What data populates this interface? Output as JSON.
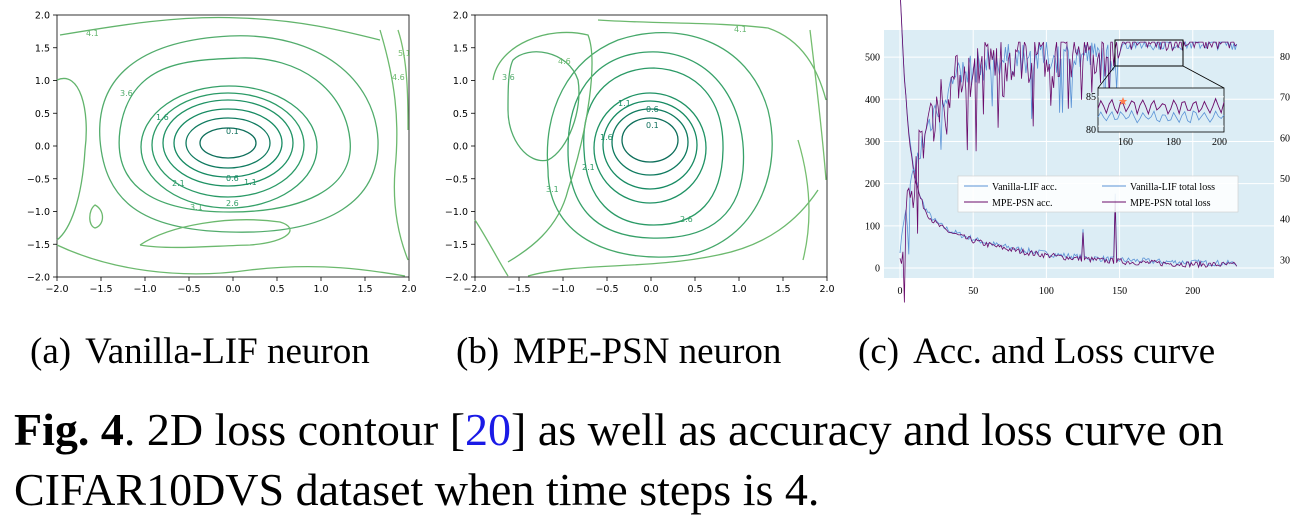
{
  "panels": [
    {
      "caption_tag": "(a)",
      "caption": "Vanilla-LIF neuron",
      "chart_data": {
        "type": "contour",
        "x_ticks": [
          "−2.0",
          "−1.5",
          "−1.0",
          "−0.5",
          "0.0",
          "0.5",
          "1.0",
          "1.5",
          "2.0"
        ],
        "y_ticks": [
          "2.0",
          "1.5",
          "1.0",
          "0.5",
          "0.0",
          "−0.5",
          "−1.0",
          "−1.5",
          "−2.0"
        ],
        "xlim": [
          -2,
          2
        ],
        "ylim": [
          -2,
          2
        ],
        "contour_labels": [
          "0.1",
          "0.6",
          "1.1",
          "1.6",
          "2.1",
          "2.6",
          "3.1",
          "3.6",
          "4.1",
          "4.6",
          "5.1"
        ],
        "min_location": [
          0.0,
          0.0
        ]
      }
    },
    {
      "caption_tag": "(b)",
      "caption": "MPE-PSN neuron",
      "chart_data": {
        "type": "contour",
        "x_ticks": [
          "−2.0",
          "−1.5",
          "−1.0",
          "−0.5",
          "0.0",
          "0.5",
          "1.0",
          "1.5",
          "2.0"
        ],
        "y_ticks": [
          "2.0",
          "1.5",
          "1.0",
          "0.5",
          "0.0",
          "−0.5",
          "−1.0",
          "−1.5",
          "−2.0"
        ],
        "xlim": [
          -2,
          2
        ],
        "ylim": [
          -2,
          2
        ],
        "contour_labels": [
          "0.1",
          "0.6",
          "1.1",
          "1.6",
          "2.1",
          "2.6",
          "3.1",
          "3.6",
          "4.1",
          "4.6"
        ],
        "min_location": [
          0.0,
          0.2
        ]
      }
    },
    {
      "caption_tag": "(c)",
      "caption": "Acc. and Loss curve",
      "chart_data": {
        "type": "line",
        "x_ticks": [
          "0",
          "50",
          "100",
          "150",
          "200"
        ],
        "y_left_ticks": [
          "500",
          "400",
          "300",
          "200",
          "100",
          "0"
        ],
        "y_right_ticks": [
          "80",
          "70",
          "60",
          "50",
          "40",
          "30"
        ],
        "xlim": [
          0,
          235
        ],
        "ylim_left": [
          0,
          550
        ],
        "ylim_right": [
          28,
          85
        ],
        "legend": [
          "Vanilla-LIF acc.",
          "MPE-PSN acc.",
          "Vanilla-LIF total loss",
          "MPE-PSN total loss"
        ],
        "inset": {
          "x_ticks": [
            "160",
            "180",
            "200"
          ],
          "y_ticks": [
            "85",
            "80"
          ],
          "xlim": [
            155,
            200
          ],
          "ylim": [
            79,
            86.5
          ]
        },
        "colors": {
          "vanilla": "#5b93d6",
          "mpe": "#6a0a6a",
          "background": "#dcedf5"
        }
      }
    }
  ],
  "figure_caption": {
    "label": "Fig. 4",
    "text_before_ref": ". 2D loss contour [",
    "ref": "20",
    "text_after_ref": "] as well as accuracy and loss curve on CIFAR10DVS dataset when time steps is 4."
  }
}
